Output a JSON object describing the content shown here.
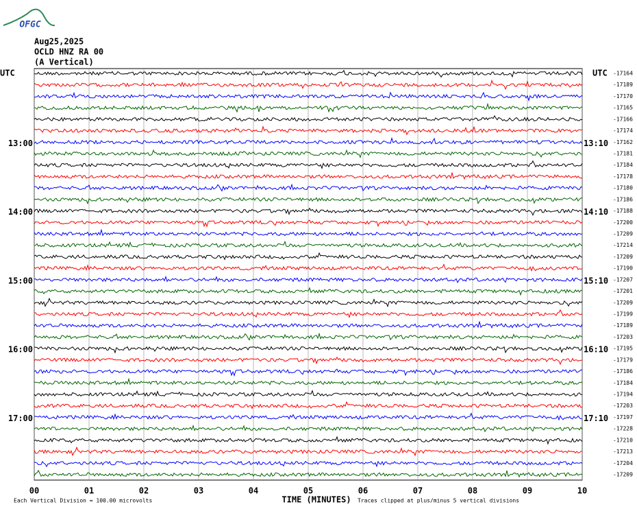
{
  "chart_data": {
    "type": "helicorder",
    "logo": "OFGC",
    "date": "Aug25,2025",
    "station": "OCLD HNZ RA 00",
    "component": "(A Vertical)",
    "left_unit": "UTC",
    "right_unit": "UTC",
    "left_labels": [
      null,
      null,
      null,
      null,
      null,
      null,
      "13:00",
      null,
      null,
      null,
      null,
      null,
      "14:00",
      null,
      null,
      null,
      null,
      null,
      "15:00",
      null,
      null,
      null,
      null,
      null,
      "16:00",
      null,
      null,
      null,
      null,
      null,
      "17:00",
      null,
      null,
      null,
      null,
      null
    ],
    "right_labels": [
      null,
      null,
      null,
      null,
      null,
      null,
      "13:10",
      null,
      null,
      null,
      null,
      null,
      "14:10",
      null,
      null,
      null,
      null,
      null,
      "15:10",
      null,
      null,
      null,
      null,
      null,
      "16:10",
      null,
      null,
      null,
      null,
      null,
      "17:10",
      null,
      null,
      null,
      null,
      null
    ],
    "offsets": [
      -17164,
      -17189,
      -17170,
      -17165,
      -17166,
      -17174,
      -17162,
      -17181,
      -17184,
      -17178,
      -17180,
      -17186,
      -17188,
      -17200,
      -17209,
      -17214,
      -17209,
      -17190,
      -17207,
      -17201,
      -17209,
      -17199,
      -17189,
      -17203,
      -17195,
      -17179,
      -17186,
      -17184,
      -17194,
      -17203,
      -17197,
      -17228,
      -17210,
      -17213,
      -17204,
      -17209
    ],
    "trace_colors": [
      "#000000",
      "#ff0000",
      "#0000ff",
      "#006400"
    ],
    "xlim": [
      0,
      10
    ],
    "xticks": [
      {
        "value": 0,
        "label": "00"
      },
      {
        "value": 1,
        "label": "01"
      },
      {
        "value": 2,
        "label": "02"
      },
      {
        "value": 3,
        "label": "03"
      },
      {
        "value": 4,
        "label": "04"
      },
      {
        "value": 5,
        "label": "05"
      },
      {
        "value": 6,
        "label": "06"
      },
      {
        "value": 7,
        "label": "07"
      },
      {
        "value": 8,
        "label": "08"
      },
      {
        "value": 9,
        "label": "09"
      },
      {
        "value": 10,
        "label": "10"
      }
    ],
    "xlabel": "TIME (MINUTES)",
    "scale_note": "Each Vertical Division =  100.00 microvolts",
    "clip_note": "Traces clipped at plus/minus 5 vertical divisions",
    "grid": true
  }
}
